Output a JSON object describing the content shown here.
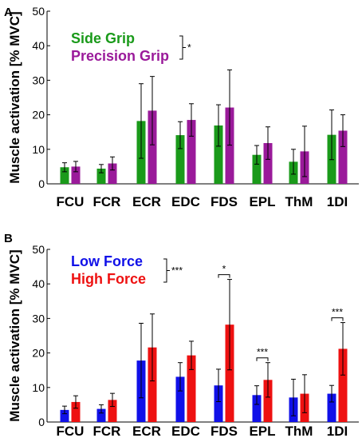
{
  "chart_data": [
    {
      "panel_label": "A",
      "type": "bar",
      "ylabel": "Muscle activation [% MVC]",
      "ylim": [
        0,
        50
      ],
      "yticks": [
        "0",
        "10",
        "20",
        "30",
        "40",
        "50"
      ],
      "categories": [
        "FCU",
        "FCR",
        "ECR",
        "EDC",
        "FDS",
        "EPL",
        "ThM",
        "1DI"
      ],
      "series": [
        {
          "name": "Side Grip",
          "color": "#1a9a1a",
          "values": [
            4.8,
            4.4,
            18.2,
            14.1,
            16.9,
            8.4,
            6.4,
            14.2
          ],
          "error": [
            1.3,
            1.2,
            10.8,
            3.9,
            6.0,
            2.7,
            3.6,
            7.2
          ]
        },
        {
          "name": "Precision Grip",
          "color": "#9a1a9a",
          "values": [
            5.0,
            5.9,
            21.2,
            18.5,
            22.1,
            11.8,
            9.4,
            15.4
          ],
          "error": [
            1.5,
            1.9,
            9.9,
            4.7,
            10.9,
            4.7,
            7.3,
            4.6
          ]
        }
      ],
      "legend_significance": "*",
      "category_significance": [],
      "grid": false,
      "legend_position": "top-left"
    },
    {
      "panel_label": "B",
      "type": "bar",
      "ylabel": "Muscle activation [% MVC]",
      "ylim": [
        0,
        50
      ],
      "yticks": [
        "0",
        "10",
        "20",
        "30",
        "40",
        "50"
      ],
      "categories": [
        "FCU",
        "FCR",
        "ECR",
        "EDC",
        "FDS",
        "EPL",
        "ThM",
        "1DI"
      ],
      "series": [
        {
          "name": "Low Force",
          "color": "#1010e8",
          "values": [
            3.5,
            3.8,
            17.8,
            13.1,
            10.6,
            7.8,
            7.1,
            8.2
          ],
          "error": [
            1.1,
            1.2,
            10.8,
            4.1,
            4.7,
            2.7,
            5.3,
            2.4
          ]
        },
        {
          "name": "High Force",
          "color": "#ee1111",
          "values": [
            5.8,
            6.4,
            21.6,
            19.3,
            28.2,
            12.2,
            8.2,
            21.2
          ],
          "error": [
            1.8,
            1.9,
            9.7,
            4.1,
            13.1,
            5.0,
            5.5,
            7.6
          ]
        }
      ],
      "legend_significance": "***",
      "category_significance": [
        {
          "category": "FDS",
          "label": "*"
        },
        {
          "category": "EPL",
          "label": "***"
        },
        {
          "category": "1DI",
          "label": "***"
        }
      ],
      "grid": false,
      "legend_position": "top-left"
    }
  ]
}
